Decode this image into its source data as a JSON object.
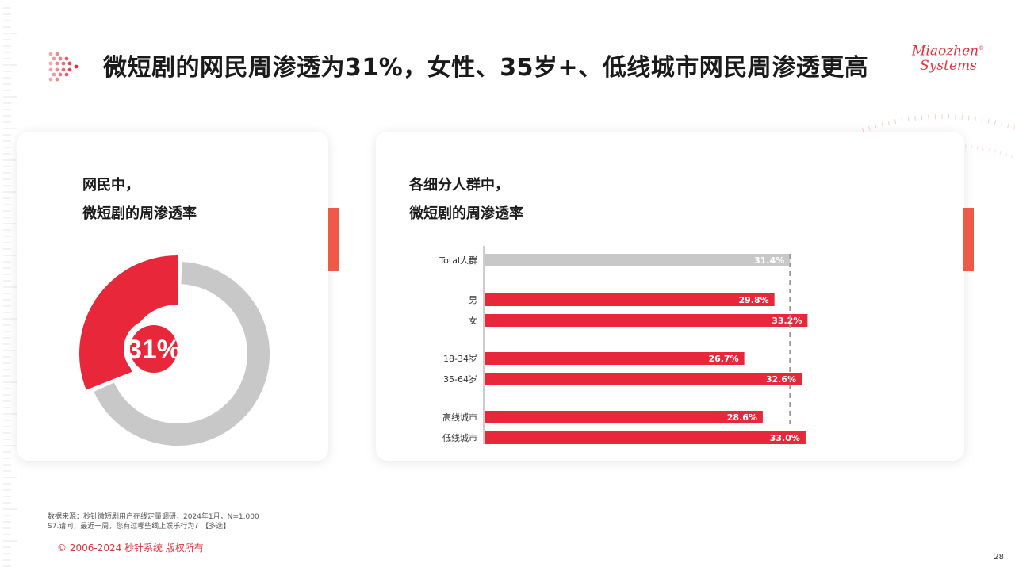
{
  "header": {
    "title": "微短剧的网民周渗透为31%，女性、35岁+、低线城市网民周渗透更高",
    "brand_line1": "Miaozhen",
    "brand_line2": "Systems"
  },
  "colors": {
    "accent": "#e8283a",
    "gray": "#c8c8c8",
    "orange_accent": "#ee5a45",
    "copyright": "#e0323c"
  },
  "left_card": {
    "heading_line1": "网民中，",
    "heading_line2": "微短剧的周渗透率"
  },
  "right_card": {
    "heading_line1": "各细分人群中，",
    "heading_line2": "微短剧的周渗透率"
  },
  "chart_data": [
    {
      "type": "pie",
      "center_label": "31%",
      "values": [
        31,
        69
      ],
      "colors": [
        "#e8283a",
        "#c8c8c8"
      ]
    },
    {
      "type": "bar",
      "orientation": "horizontal",
      "categories": [
        "Total人群",
        "男",
        "女",
        "18-34岁",
        "35-64岁",
        "高线城市",
        "低线城市"
      ],
      "values": [
        31.4,
        29.8,
        33.2,
        26.7,
        32.6,
        28.6,
        33.0
      ],
      "labels": [
        "31.4%",
        "29.8%",
        "33.2%",
        "26.7%",
        "32.6%",
        "28.6%",
        "33.0%"
      ],
      "colors": [
        "#c8c8c8",
        "#e8283a",
        "#e8283a",
        "#e8283a",
        "#e8283a",
        "#e8283a",
        "#e8283a"
      ],
      "reference_line": 31.4,
      "xlim": [
        0,
        37
      ]
    }
  ],
  "footer": {
    "source_line1": "数据来源：秒针微短剧用户在线定量调研，2024年1月，N=1,000",
    "source_line2": "S7.请问，最近一周，您有过哪些线上娱乐行为？【多选】",
    "copyright": "© 2006-2024 秒针系统 版权所有",
    "page_number": "28"
  }
}
